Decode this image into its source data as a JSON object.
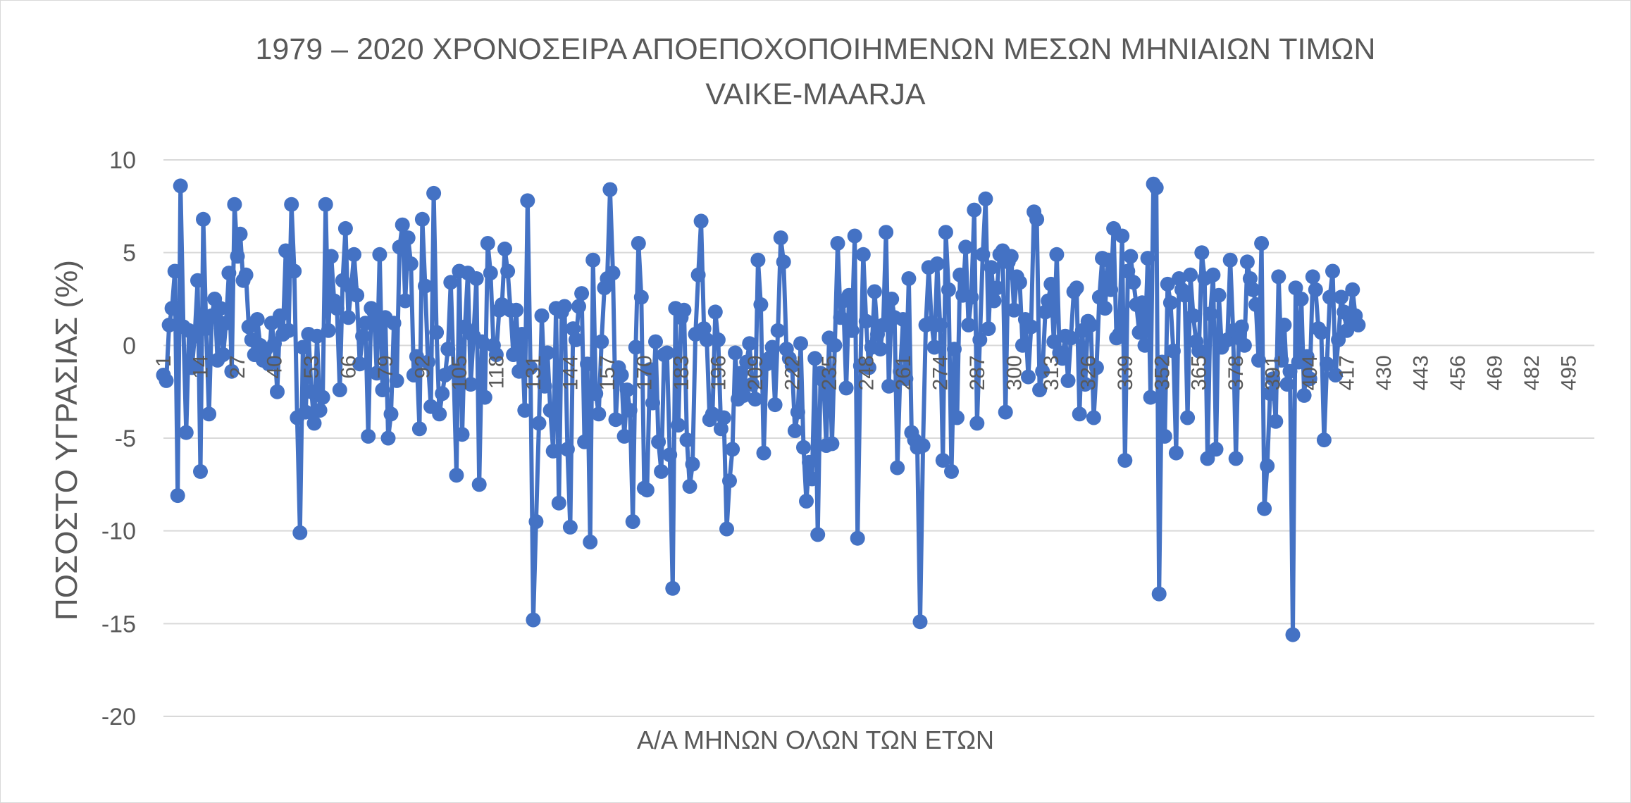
{
  "chart_data": {
    "type": "line",
    "title_line1": "1979 – 2020 ΧΡΟΝΟΣΕΙΡΑ ΑΠΟΕΠΟΧΟΠΟΙΗΜΕΝΩΝ ΜΕΣΩΝ ΜΗΝΙΑΙΩΝ ΤΙΜΩΝ",
    "title_line2": "VAIKE-MAARJA",
    "xlabel": "Α/Α ΜΗΝΩΝ ΟΛΩΝ ΤΩΝ ΕΤΩΝ",
    "ylabel": "ΠΟΣΟΣΤΟ ΥΓΡΑΣΙΑΣ (%)",
    "ylim": [
      -20,
      10
    ],
    "y_ticks": [
      "10",
      "5",
      "0",
      "-5",
      "-10",
      "-15",
      "-20"
    ],
    "xlim": [
      1,
      504
    ],
    "x_ticks": [
      "1",
      "14",
      "27",
      "40",
      "53",
      "66",
      "79",
      "92",
      "105",
      "118",
      "131",
      "144",
      "157",
      "170",
      "183",
      "196",
      "209",
      "222",
      "235",
      "248",
      "261",
      "274",
      "287",
      "300",
      "313",
      "326",
      "339",
      "352",
      "365",
      "378",
      "391",
      "404",
      "417",
      "430",
      "443",
      "456",
      "469",
      "482",
      "495"
    ],
    "grid": true,
    "legend": "none",
    "colors": {
      "series": "#4472c4",
      "grid": "#d9d9d9",
      "text": "#595959"
    },
    "series": [
      {
        "values": [
          -1.6,
          -1.9,
          1.1,
          2.0,
          4.0,
          -8.1,
          8.6,
          1.0,
          -4.7,
          0.8,
          -1.2,
          0.5,
          3.5,
          -6.8,
          6.8,
          0.9,
          -3.7,
          1.6,
          2.5,
          -0.8,
          2.0,
          -0.5,
          1.2,
          3.9,
          -1.4,
          7.6,
          4.8,
          6.0,
          3.5,
          3.8,
          1.0,
          0.3,
          -0.5,
          1.4,
          0.0,
          -0.8,
          -0.2,
          -1.0,
          1.2,
          0.1,
          -2.5,
          1.6,
          0.6,
          5.1,
          0.8,
          7.6,
          4.0,
          -3.9,
          -10.1,
          -0.1,
          -3.6,
          0.6,
          -2.5,
          -4.2,
          0.5,
          -3.5,
          -2.8,
          7.6,
          0.8,
          4.8,
          2.4,
          2.0,
          -2.4,
          3.5,
          6.3,
          1.5,
          3.1,
          4.9,
          2.7,
          -1.0,
          0.5,
          1.2,
          -4.9,
          2.0,
          1.8,
          -1.5,
          4.9,
          -2.4,
          1.5,
          -5.0,
          -3.7,
          1.2,
          -1.9,
          5.3,
          6.5,
          2.4,
          5.8,
          4.4,
          -1.6,
          -0.6,
          -4.5,
          6.8,
          3.2,
          -0.9,
          -3.3,
          8.2,
          0.7,
          -3.7,
          -2.6,
          -1.6,
          -0.2,
          3.4,
          -1.4,
          -7.0,
          4.0,
          -4.8,
          1.0,
          3.9,
          -2.1,
          0.5,
          3.6,
          -7.5,
          0.2,
          -2.8,
          5.5,
          3.9,
          0.0,
          -0.5,
          1.9,
          2.2,
          5.2,
          4.0,
          1.9,
          -0.5,
          1.9,
          -1.4,
          0.6,
          -3.5,
          7.8,
          -1.2,
          -14.8,
          -9.5,
          -4.2,
          1.6,
          -2.2,
          -0.4,
          -3.5,
          -5.7,
          2.0,
          -8.5,
          1.8,
          2.1,
          -5.6,
          -9.8,
          0.9,
          0.3,
          2.1,
          2.8,
          -5.2,
          -1.0,
          -10.6,
          4.6,
          -2.6,
          -3.7,
          0.2,
          3.1,
          3.6,
          8.4,
          3.9,
          -4.0,
          -1.2,
          -1.6,
          -4.9,
          -2.4,
          -3.5,
          -9.5,
          -0.1,
          5.5,
          2.6,
          -7.7,
          -7.8,
          -1.3,
          -3.1,
          0.2,
          -5.2,
          -6.8,
          -0.5,
          -0.4,
          -5.9,
          -13.1,
          2.0,
          -4.3,
          1.5,
          1.9,
          -5.1,
          -7.6,
          -6.4,
          0.6,
          3.8,
          6.7,
          0.9,
          0.3,
          -4.0,
          -3.7,
          1.8,
          0.3,
          -4.5,
          -3.9,
          -9.9,
          -7.3,
          -5.6,
          -0.4,
          -2.9,
          -1.5,
          -2.7,
          -0.9,
          0.1,
          -2.1,
          -2.9,
          4.6,
          2.2,
          -5.8,
          -1.0,
          -0.7,
          -0.1,
          -3.2,
          0.8,
          5.8,
          4.5,
          -0.2,
          -0.7,
          -1.1,
          -4.6,
          -3.6,
          0.1,
          -5.5,
          -8.4,
          -6.3,
          -7.2,
          -0.7,
          -10.2,
          -1.5,
          -1.9,
          -5.4,
          0.4,
          -5.3,
          0.0,
          5.5,
          1.5,
          2.4,
          -2.3,
          2.7,
          0.8,
          5.9,
          -10.4,
          -1.1,
          4.9,
          1.3,
          -1.2,
          -0.1,
          2.9,
          0.6,
          -0.2,
          1.1,
          6.1,
          -2.2,
          2.5,
          1.5,
          -6.6,
          -1.4,
          1.4,
          -1.8,
          3.6,
          -4.7,
          -5.1,
          -5.5,
          -14.9,
          -5.4,
          1.1,
          4.2,
          1.2,
          -0.1,
          4.4,
          1.1,
          -6.2,
          6.1,
          3.0,
          -6.8,
          -0.2,
          -3.9,
          3.8,
          2.7,
          5.3,
          1.1,
          2.6,
          7.3,
          -4.2,
          0.3,
          4.9,
          7.9,
          0.9,
          4.2,
          2.4,
          3.1,
          4.9,
          5.1,
          -3.6,
          4.5,
          4.8,
          1.9,
          3.7,
          3.4,
          0.0,
          1.4,
          -1.7,
          1.0,
          7.2,
          6.8,
          -2.4,
          -1.4,
          1.8,
          2.4,
          3.3,
          0.2,
          4.9,
          -0.4,
          -0.7,
          0.5,
          -1.9,
          0.4,
          2.9,
          3.1,
          -3.7,
          0.8,
          -2.1,
          1.3,
          1.1,
          -3.9,
          -1.2,
          2.6,
          4.7,
          2.0,
          4.6,
          3.0,
          6.3,
          0.4,
          0.6,
          5.9,
          -6.2,
          4.0,
          4.8,
          3.4,
          2.2,
          0.7,
          2.3,
          0.0,
          4.7,
          -2.8,
          8.7,
          8.5,
          -13.4,
          -0.9,
          -4.9,
          3.3,
          2.3,
          -0.3,
          -5.8,
          3.6,
          3.0,
          2.7,
          -3.9,
          3.8,
          1.6,
          0.2,
          -0.3,
          5.0,
          3.6,
          -6.1,
          1.7,
          3.8,
          -5.6,
          2.7,
          -0.1,
          0.2,
          0.3,
          4.6,
          0.8,
          -6.1,
          0.4,
          1.0,
          0.0,
          4.5,
          3.6,
          3.0,
          2.2,
          -0.8,
          5.5,
          -8.8,
          -6.5,
          -2.6,
          -1.8,
          -4.1,
          3.7,
          -0.8,
          1.1,
          -2.1,
          -1.4,
          -15.6,
          3.1,
          -0.9,
          2.5,
          -2.7,
          -0.6,
          -1.8,
          3.7,
          3.0,
          0.9,
          0.7,
          -5.1,
          -1.0,
          2.6,
          4.0,
          -1.6,
          0.3,
          2.6,
          1.8,
          0.8,
          1.5,
          3.0,
          1.6,
          1.1
        ]
      }
    ]
  }
}
